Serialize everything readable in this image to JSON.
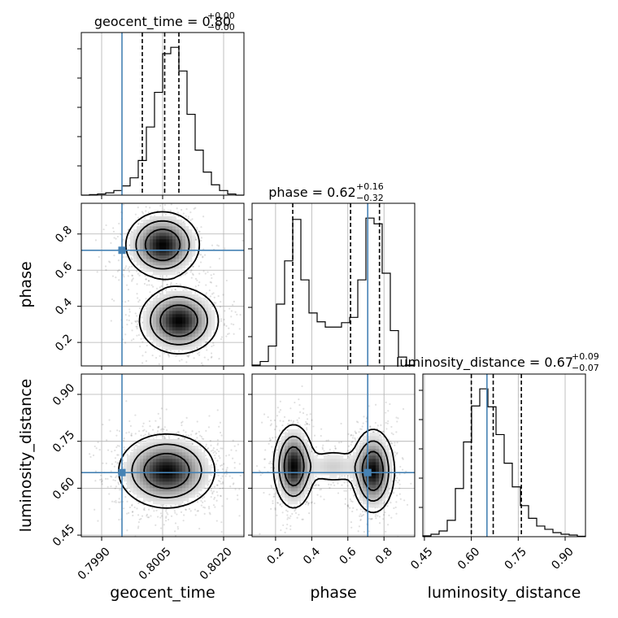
{
  "chart_data": {
    "type": "corner",
    "parameters": [
      "geocent_time",
      "phase",
      "luminosity_distance"
    ],
    "axis_labels": {
      "geocent_time": "geocent_time",
      "phase": "phase",
      "luminosity_distance": "luminosity_distance"
    },
    "titles": [
      {
        "name": "geocent_time",
        "text": "geocent_time = 0.80",
        "sup": "+0.00",
        "sub": "−0.00"
      },
      {
        "name": "phase",
        "text": "phase = 0.62",
        "sup": "+0.16",
        "sub": "−0.32"
      },
      {
        "name": "luminosity_distance",
        "text": "luminosity_distance = 0.67",
        "sup": "+0.09",
        "sub": "−0.07"
      }
    ],
    "ranges": {
      "geocent_time": [
        0.7985,
        0.8025
      ],
      "phase": [
        0.07,
        0.97
      ],
      "luminosity_distance": [
        0.445,
        0.965
      ]
    },
    "ticks": {
      "geocent_time": [
        {
          "v": 0.799,
          "label": "0.7990"
        },
        {
          "v": 0.8005,
          "label": "0.8005"
        },
        {
          "v": 0.802,
          "label": "0.8020"
        }
      ],
      "phase": [
        {
          "v": 0.2,
          "label": "0.2"
        },
        {
          "v": 0.4,
          "label": "0.4"
        },
        {
          "v": 0.6,
          "label": "0.6"
        },
        {
          "v": 0.8,
          "label": "0.8"
        }
      ],
      "luminosity_distance": [
        {
          "v": 0.45,
          "label": "0.45"
        },
        {
          "v": 0.6,
          "label": "0.60"
        },
        {
          "v": 0.75,
          "label": "0.75"
        },
        {
          "v": 0.9,
          "label": "0.90"
        }
      ]
    },
    "grid": true,
    "truth_color": "#4682b4",
    "truths": {
      "geocent_time": 0.7995,
      "phase": 0.71,
      "luminosity_distance": 0.65
    },
    "quantiles": {
      "geocent_time": [
        0.8,
        0.80055,
        0.8009
      ],
      "phase": [
        0.295,
        0.615,
        0.775
      ],
      "luminosity_distance": [
        0.6,
        0.67,
        0.76
      ]
    },
    "histograms": {
      "geocent_time": {
        "edges": [
          0.7985,
          0.7987,
          0.7989,
          0.7991,
          0.7993,
          0.7995,
          0.7997,
          0.7999,
          0.8001,
          0.8003,
          0.8005,
          0.8007,
          0.8009,
          0.8011,
          0.8013,
          0.8015,
          0.8017,
          0.8019,
          0.8021,
          0.8023,
          0.8025
        ],
        "counts": [
          0,
          1,
          2,
          4,
          8,
          16,
          30,
          60,
          118,
          178,
          245,
          256,
          215,
          140,
          78,
          40,
          18,
          8,
          2,
          0
        ]
      },
      "phase": {
        "edges": [
          0.07,
          0.115,
          0.16,
          0.205,
          0.25,
          0.295,
          0.34,
          0.385,
          0.43,
          0.475,
          0.52,
          0.565,
          0.61,
          0.655,
          0.7,
          0.745,
          0.79,
          0.835,
          0.88,
          0.925,
          0.97
        ],
        "counts": [
          2,
          10,
          45,
          140,
          238,
          332,
          195,
          120,
          100,
          88,
          88,
          98,
          110,
          195,
          335,
          322,
          210,
          80,
          20,
          2
        ]
      },
      "luminosity_distance": {
        "edges": [
          0.445,
          0.471,
          0.497,
          0.523,
          0.549,
          0.575,
          0.601,
          0.627,
          0.653,
          0.679,
          0.705,
          0.731,
          0.757,
          0.783,
          0.809,
          0.835,
          0.861,
          0.887,
          0.913,
          0.939,
          0.965
        ],
        "counts": [
          2,
          6,
          14,
          40,
          118,
          232,
          320,
          362,
          318,
          250,
          180,
          122,
          76,
          45,
          26,
          18,
          10,
          6,
          4,
          1
        ]
      }
    },
    "density_modes": {
      "phase_vs_geocent_time": [
        {
          "x": 0.8005,
          "y": 0.74,
          "sx": 0.00042,
          "sy": 0.085,
          "w": 1
        },
        {
          "x": 0.8009,
          "y": 0.32,
          "sx": 0.00045,
          "sy": 0.085,
          "w": 1
        }
      ],
      "luminosity_distance_vs_geocent_time": [
        {
          "x": 0.8006,
          "y": 0.655,
          "sx": 0.00055,
          "sy": 0.055,
          "w": 1
        }
      ],
      "luminosity_distance_vs_phase": [
        {
          "x": 0.3,
          "y": 0.67,
          "sx": 0.052,
          "sy": 0.062,
          "w": 1
        },
        {
          "x": 0.74,
          "y": 0.655,
          "sx": 0.055,
          "sy": 0.062,
          "w": 1
        },
        {
          "x": 0.52,
          "y": 0.67,
          "sx": 0.09,
          "sy": 0.03,
          "w": 0.28
        }
      ]
    },
    "contour_levels": [
      0.6,
      0.3,
      0.1
    ]
  }
}
